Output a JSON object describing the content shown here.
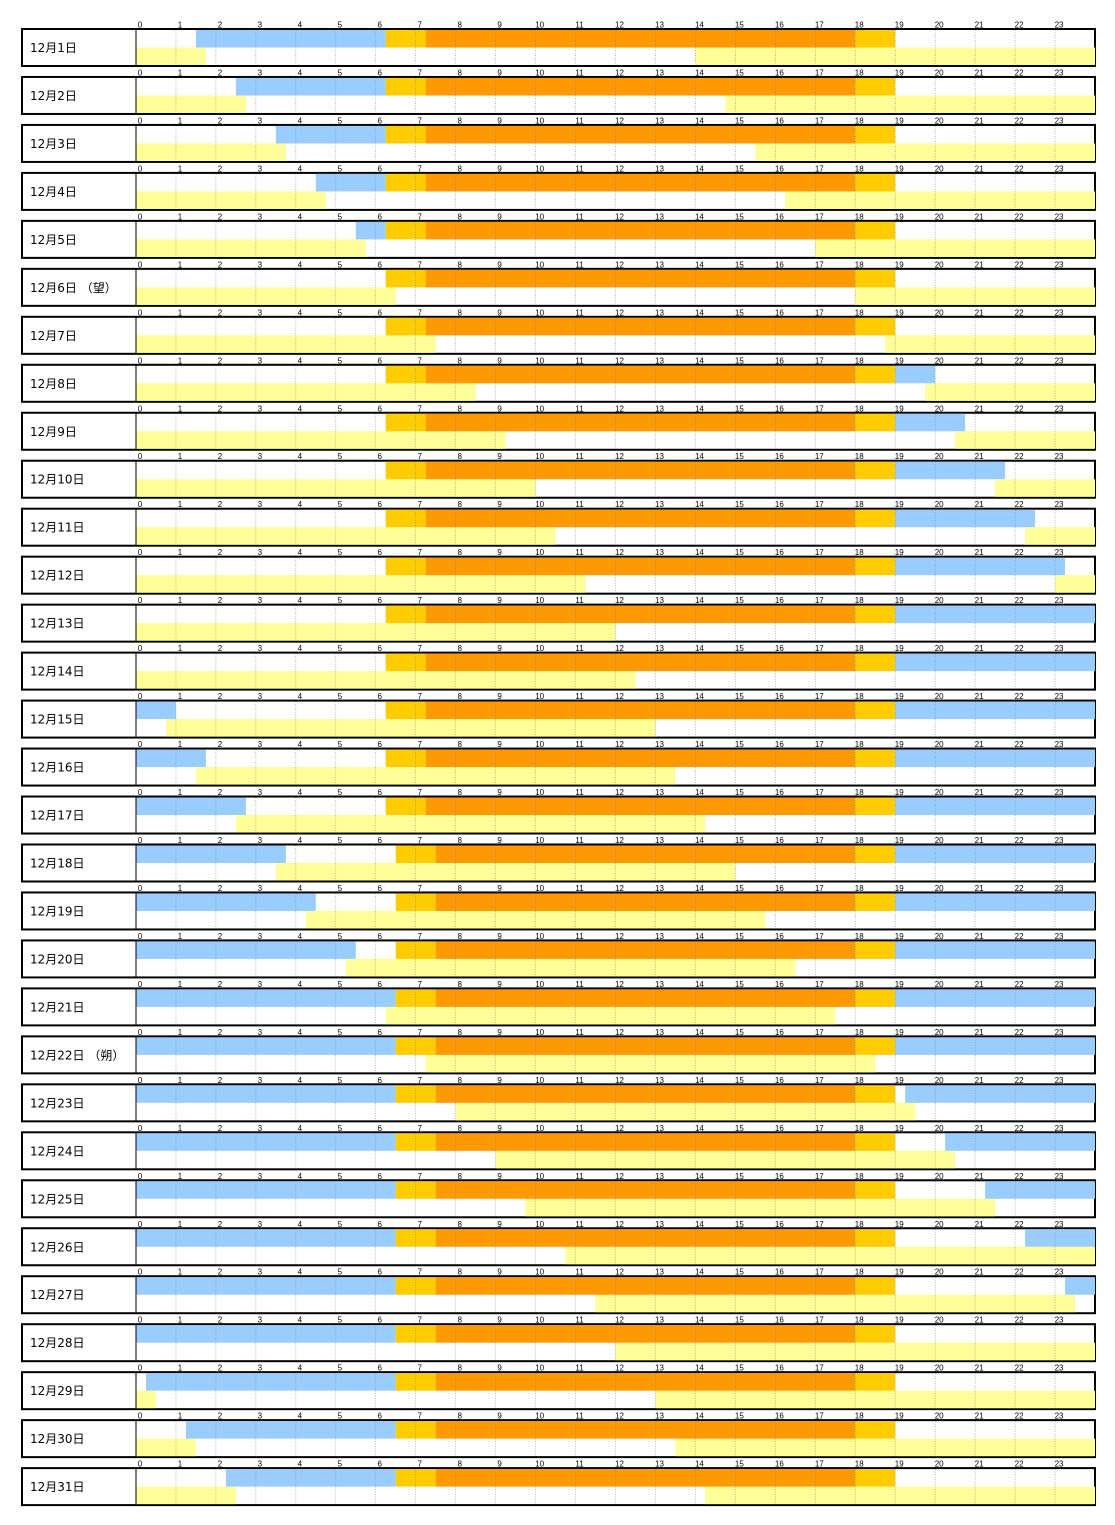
{
  "chart_data": {
    "type": "timeline",
    "x_range": [
      0,
      24
    ],
    "hour_ticks": [
      "0",
      "1",
      "2",
      "3",
      "4",
      "5",
      "6",
      "7",
      "8",
      "9",
      "10",
      "11",
      "12",
      "13",
      "14",
      "15",
      "16",
      "17",
      "18",
      "19",
      "20",
      "21",
      "22",
      "23"
    ],
    "colors": {
      "daylight": "#ff9900",
      "twilight": "#ffcc00",
      "moon_up": "#99ccff",
      "moon_secondary": "#ffff99",
      "background": "#ffffff",
      "grid": "#888888"
    },
    "days": [
      {
        "label": "12月1日",
        "upper": [
          [
            1.5,
            6.25,
            "moon_up"
          ],
          [
            6.25,
            7.25,
            "twilight"
          ],
          [
            7.25,
            18.0,
            "daylight"
          ],
          [
            18.0,
            19.0,
            "twilight"
          ]
        ],
        "lower": [
          [
            0,
            1.75
          ],
          [
            14.0,
            24
          ]
        ]
      },
      {
        "label": "12月2日",
        "upper": [
          [
            2.5,
            6.25,
            "moon_up"
          ],
          [
            6.25,
            7.25,
            "twilight"
          ],
          [
            7.25,
            18.0,
            "daylight"
          ],
          [
            18.0,
            19.0,
            "twilight"
          ]
        ],
        "lower": [
          [
            0,
            2.75
          ],
          [
            14.75,
            24
          ]
        ]
      },
      {
        "label": "12月3日",
        "upper": [
          [
            3.5,
            6.25,
            "moon_up"
          ],
          [
            6.25,
            7.25,
            "twilight"
          ],
          [
            7.25,
            18.0,
            "daylight"
          ],
          [
            18.0,
            19.0,
            "twilight"
          ]
        ],
        "lower": [
          [
            0,
            3.75
          ],
          [
            15.5,
            24
          ]
        ]
      },
      {
        "label": "12月4日",
        "upper": [
          [
            4.5,
            6.25,
            "moon_up"
          ],
          [
            6.25,
            7.25,
            "twilight"
          ],
          [
            7.25,
            18.0,
            "daylight"
          ],
          [
            18.0,
            19.0,
            "twilight"
          ]
        ],
        "lower": [
          [
            0,
            4.75
          ],
          [
            16.25,
            24
          ]
        ]
      },
      {
        "label": "12月5日",
        "upper": [
          [
            5.5,
            6.25,
            "moon_up"
          ],
          [
            6.25,
            7.25,
            "twilight"
          ],
          [
            7.25,
            18.0,
            "daylight"
          ],
          [
            18.0,
            19.0,
            "twilight"
          ]
        ],
        "lower": [
          [
            0,
            5.75
          ],
          [
            17.0,
            24
          ]
        ]
      },
      {
        "label": "12月6日 （望）",
        "upper": [
          [
            6.25,
            7.25,
            "twilight"
          ],
          [
            7.25,
            18.0,
            "daylight"
          ],
          [
            18.0,
            19.0,
            "twilight"
          ]
        ],
        "lower": [
          [
            0,
            6.5
          ],
          [
            18.0,
            24
          ]
        ]
      },
      {
        "label": "12月7日",
        "upper": [
          [
            6.25,
            7.25,
            "twilight"
          ],
          [
            7.25,
            18.0,
            "daylight"
          ],
          [
            18.0,
            19.0,
            "twilight"
          ]
        ],
        "lower": [
          [
            0,
            7.5
          ],
          [
            18.75,
            24
          ]
        ]
      },
      {
        "label": "12月8日",
        "upper": [
          [
            6.25,
            7.25,
            "twilight"
          ],
          [
            7.25,
            18.0,
            "daylight"
          ],
          [
            18.0,
            19.0,
            "twilight"
          ],
          [
            19.0,
            20.0,
            "moon_up"
          ]
        ],
        "lower": [
          [
            0,
            8.5
          ],
          [
            19.75,
            24
          ]
        ]
      },
      {
        "label": "12月9日",
        "upper": [
          [
            6.25,
            7.25,
            "twilight"
          ],
          [
            7.25,
            18.0,
            "daylight"
          ],
          [
            18.0,
            19.0,
            "twilight"
          ],
          [
            19.0,
            20.75,
            "moon_up"
          ]
        ],
        "lower": [
          [
            0,
            9.25
          ],
          [
            20.5,
            24
          ]
        ]
      },
      {
        "label": "12月10日",
        "upper": [
          [
            6.25,
            7.25,
            "twilight"
          ],
          [
            7.25,
            18.0,
            "daylight"
          ],
          [
            18.0,
            19.0,
            "twilight"
          ],
          [
            19.0,
            21.75,
            "moon_up"
          ]
        ],
        "lower": [
          [
            0,
            10.0
          ],
          [
            21.5,
            24
          ]
        ]
      },
      {
        "label": "12月11日",
        "upper": [
          [
            6.25,
            7.25,
            "twilight"
          ],
          [
            7.25,
            18.0,
            "daylight"
          ],
          [
            18.0,
            19.0,
            "twilight"
          ],
          [
            19.0,
            22.5,
            "moon_up"
          ]
        ],
        "lower": [
          [
            0,
            10.5
          ],
          [
            22.25,
            24
          ]
        ]
      },
      {
        "label": "12月12日",
        "upper": [
          [
            6.25,
            7.25,
            "twilight"
          ],
          [
            7.25,
            18.0,
            "daylight"
          ],
          [
            18.0,
            19.0,
            "twilight"
          ],
          [
            19.0,
            23.25,
            "moon_up"
          ]
        ],
        "lower": [
          [
            0,
            11.25
          ],
          [
            23.0,
            24
          ]
        ]
      },
      {
        "label": "12月13日",
        "upper": [
          [
            6.25,
            7.25,
            "twilight"
          ],
          [
            7.25,
            18.0,
            "daylight"
          ],
          [
            18.0,
            19.0,
            "twilight"
          ],
          [
            19.0,
            24,
            "moon_up"
          ]
        ],
        "lower": [
          [
            0,
            12.0
          ]
        ]
      },
      {
        "label": "12月14日",
        "upper": [
          [
            6.25,
            7.25,
            "twilight"
          ],
          [
            7.25,
            18.0,
            "daylight"
          ],
          [
            18.0,
            19.0,
            "twilight"
          ],
          [
            19.0,
            24,
            "moon_up"
          ]
        ],
        "lower": [
          [
            0,
            12.5
          ]
        ]
      },
      {
        "label": "12月15日",
        "upper": [
          [
            0,
            1.0,
            "moon_up"
          ],
          [
            6.25,
            7.25,
            "twilight"
          ],
          [
            7.25,
            18.0,
            "daylight"
          ],
          [
            18.0,
            19.0,
            "twilight"
          ],
          [
            19.0,
            24,
            "moon_up"
          ]
        ],
        "lower": [
          [
            0.75,
            13.0
          ]
        ]
      },
      {
        "label": "12月16日",
        "upper": [
          [
            0,
            1.75,
            "moon_up"
          ],
          [
            6.25,
            7.25,
            "twilight"
          ],
          [
            7.25,
            18.0,
            "daylight"
          ],
          [
            18.0,
            19.0,
            "twilight"
          ],
          [
            19.0,
            24,
            "moon_up"
          ]
        ],
        "lower": [
          [
            1.5,
            13.5
          ]
        ]
      },
      {
        "label": "12月17日",
        "upper": [
          [
            0,
            2.75,
            "moon_up"
          ],
          [
            6.25,
            7.25,
            "twilight"
          ],
          [
            7.25,
            18.0,
            "daylight"
          ],
          [
            18.0,
            19.0,
            "twilight"
          ],
          [
            19.0,
            24,
            "moon_up"
          ]
        ],
        "lower": [
          [
            2.5,
            14.25
          ]
        ]
      },
      {
        "label": "12月18日",
        "upper": [
          [
            0,
            3.75,
            "moon_up"
          ],
          [
            6.5,
            7.5,
            "twilight"
          ],
          [
            7.5,
            18.0,
            "daylight"
          ],
          [
            18.0,
            19.0,
            "twilight"
          ],
          [
            19.0,
            24,
            "moon_up"
          ]
        ],
        "lower": [
          [
            3.5,
            15.0
          ]
        ]
      },
      {
        "label": "12月19日",
        "upper": [
          [
            0,
            4.5,
            "moon_up"
          ],
          [
            6.5,
            7.5,
            "twilight"
          ],
          [
            7.5,
            18.0,
            "daylight"
          ],
          [
            18.0,
            19.0,
            "twilight"
          ],
          [
            19.0,
            24,
            "moon_up"
          ]
        ],
        "lower": [
          [
            4.25,
            15.75
          ]
        ]
      },
      {
        "label": "12月20日",
        "upper": [
          [
            0,
            5.5,
            "moon_up"
          ],
          [
            6.5,
            7.5,
            "twilight"
          ],
          [
            7.5,
            18.0,
            "daylight"
          ],
          [
            18.0,
            19.0,
            "twilight"
          ],
          [
            19.0,
            24,
            "moon_up"
          ]
        ],
        "lower": [
          [
            5.25,
            16.5
          ]
        ]
      },
      {
        "label": "12月21日",
        "upper": [
          [
            0,
            6.5,
            "moon_up"
          ],
          [
            6.5,
            7.5,
            "twilight"
          ],
          [
            7.5,
            18.0,
            "daylight"
          ],
          [
            18.0,
            19.0,
            "twilight"
          ],
          [
            19.0,
            24,
            "moon_up"
          ]
        ],
        "lower": [
          [
            6.25,
            17.5
          ]
        ]
      },
      {
        "label": "12月22日 （朔）",
        "upper": [
          [
            0,
            6.5,
            "moon_up"
          ],
          [
            6.5,
            7.5,
            "twilight"
          ],
          [
            7.5,
            18.0,
            "daylight"
          ],
          [
            18.0,
            19.0,
            "twilight"
          ],
          [
            19.0,
            24,
            "moon_up"
          ]
        ],
        "lower": [
          [
            7.25,
            18.5
          ]
        ]
      },
      {
        "label": "12月23日",
        "upper": [
          [
            0,
            6.5,
            "moon_up"
          ],
          [
            6.5,
            7.5,
            "twilight"
          ],
          [
            7.5,
            18.0,
            "daylight"
          ],
          [
            18.0,
            19.0,
            "twilight"
          ],
          [
            19.25,
            24,
            "moon_up"
          ]
        ],
        "lower": [
          [
            8.0,
            19.5
          ]
        ]
      },
      {
        "label": "12月24日",
        "upper": [
          [
            0,
            6.5,
            "moon_up"
          ],
          [
            6.5,
            7.5,
            "twilight"
          ],
          [
            7.5,
            18.0,
            "daylight"
          ],
          [
            18.0,
            19.0,
            "twilight"
          ],
          [
            20.25,
            24,
            "moon_up"
          ]
        ],
        "lower": [
          [
            9.0,
            20.5
          ]
        ]
      },
      {
        "label": "12月25日",
        "upper": [
          [
            0,
            6.5,
            "moon_up"
          ],
          [
            6.5,
            7.5,
            "twilight"
          ],
          [
            7.5,
            18.0,
            "daylight"
          ],
          [
            18.0,
            19.0,
            "twilight"
          ],
          [
            21.25,
            24,
            "moon_up"
          ]
        ],
        "lower": [
          [
            9.75,
            21.5
          ]
        ]
      },
      {
        "label": "12月26日",
        "upper": [
          [
            0,
            6.5,
            "moon_up"
          ],
          [
            6.5,
            7.5,
            "twilight"
          ],
          [
            7.5,
            18.0,
            "daylight"
          ],
          [
            18.0,
            19.0,
            "twilight"
          ],
          [
            22.25,
            24,
            "moon_up"
          ]
        ],
        "lower": [
          [
            10.75,
            24
          ]
        ]
      },
      {
        "label": "12月27日",
        "upper": [
          [
            0,
            6.5,
            "moon_up"
          ],
          [
            6.5,
            7.5,
            "twilight"
          ],
          [
            7.5,
            18.0,
            "daylight"
          ],
          [
            18.0,
            19.0,
            "twilight"
          ],
          [
            23.25,
            24,
            "moon_up"
          ]
        ],
        "lower": [
          [
            11.5,
            23.5
          ]
        ]
      },
      {
        "label": "12月28日",
        "upper": [
          [
            0,
            6.5,
            "moon_up"
          ],
          [
            6.5,
            7.5,
            "twilight"
          ],
          [
            7.5,
            18.0,
            "daylight"
          ],
          [
            18.0,
            19.0,
            "twilight"
          ]
        ],
        "lower": [
          [
            12.0,
            24
          ]
        ]
      },
      {
        "label": "12月29日",
        "upper": [
          [
            0.25,
            6.5,
            "moon_up"
          ],
          [
            6.5,
            7.5,
            "twilight"
          ],
          [
            7.5,
            18.0,
            "daylight"
          ],
          [
            18.0,
            19.0,
            "twilight"
          ]
        ],
        "lower": [
          [
            0,
            0.5
          ],
          [
            13.0,
            24
          ]
        ]
      },
      {
        "label": "12月30日",
        "upper": [
          [
            1.25,
            6.5,
            "moon_up"
          ],
          [
            6.5,
            7.5,
            "twilight"
          ],
          [
            7.5,
            18.0,
            "daylight"
          ],
          [
            18.0,
            19.0,
            "twilight"
          ]
        ],
        "lower": [
          [
            0,
            1.5
          ],
          [
            13.5,
            24
          ]
        ]
      },
      {
        "label": "12月31日",
        "upper": [
          [
            2.25,
            6.5,
            "moon_up"
          ],
          [
            6.5,
            7.5,
            "twilight"
          ],
          [
            7.5,
            18.0,
            "daylight"
          ],
          [
            18.0,
            19.0,
            "twilight"
          ]
        ],
        "lower": [
          [
            0,
            2.5
          ],
          [
            14.25,
            24
          ]
        ]
      }
    ]
  }
}
